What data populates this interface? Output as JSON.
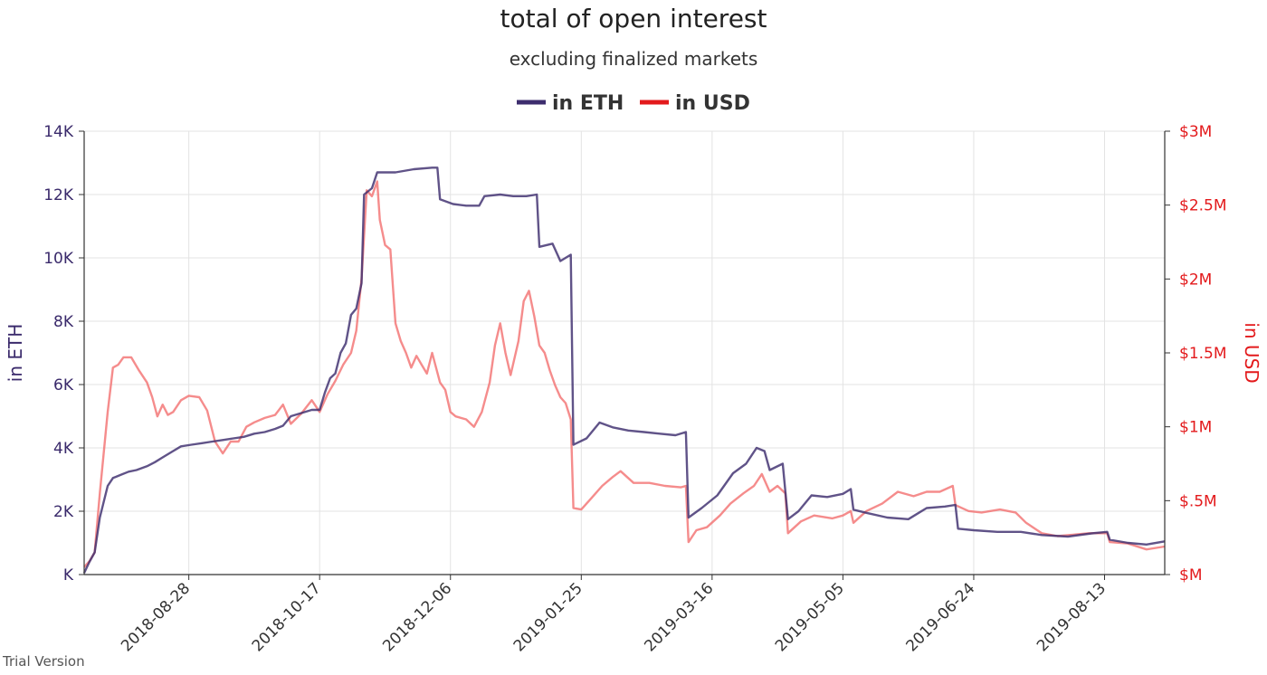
{
  "watermark": "Trial Version",
  "chart_data": {
    "type": "line",
    "title": "total of open interest",
    "subtitle": "excluding finalized markets",
    "legend_position": "top-center",
    "grid": true,
    "colors": {
      "eth": "#3d2d6e",
      "usd": "#f26b6b",
      "eth_tick": "#3a2a6b",
      "usd_tick": "#e31a1c"
    },
    "y_left": {
      "label": "in ETH",
      "range": [
        0,
        14000
      ],
      "ticks": [
        0,
        2000,
        4000,
        6000,
        8000,
        10000,
        12000,
        14000
      ],
      "tick_labels": [
        "K",
        "2K",
        "4K",
        "6K",
        "8K",
        "10K",
        "12K",
        "14K"
      ]
    },
    "y_right": {
      "label": "in USD",
      "range": [
        0,
        3000000
      ],
      "ticks": [
        0,
        500000,
        1000000,
        1500000,
        2000000,
        2500000,
        3000000
      ],
      "tick_labels": [
        "$M",
        "$.5M",
        "$1M",
        "$1.5M",
        "$2M",
        "$2.5M",
        "$3M"
      ]
    },
    "x_range": [
      "2018-07-19",
      "2019-09-05"
    ],
    "x_ticks": [
      "2018-08-28",
      "2018-10-17",
      "2018-12-06",
      "2019-01-25",
      "2019-03-16",
      "2019-05-05",
      "2019-06-24",
      "2019-08-13"
    ],
    "series": [
      {
        "name": "in ETH",
        "axis": "left",
        "points": [
          [
            "2018-07-19",
            50
          ],
          [
            "2018-07-21",
            400
          ],
          [
            "2018-07-23",
            700
          ],
          [
            "2018-07-25",
            1800
          ],
          [
            "2018-07-28",
            2800
          ],
          [
            "2018-07-30",
            3050
          ],
          [
            "2018-08-02",
            3150
          ],
          [
            "2018-08-05",
            3250
          ],
          [
            "2018-08-08",
            3300
          ],
          [
            "2018-08-12",
            3420
          ],
          [
            "2018-08-15",
            3550
          ],
          [
            "2018-08-18",
            3700
          ],
          [
            "2018-08-22",
            3900
          ],
          [
            "2018-08-25",
            4050
          ],
          [
            "2018-08-29",
            4100
          ],
          [
            "2018-09-02",
            4150
          ],
          [
            "2018-09-06",
            4200
          ],
          [
            "2018-09-10",
            4250
          ],
          [
            "2018-09-14",
            4300
          ],
          [
            "2018-09-18",
            4350
          ],
          [
            "2018-09-22",
            4450
          ],
          [
            "2018-09-26",
            4500
          ],
          [
            "2018-09-30",
            4600
          ],
          [
            "2018-10-03",
            4700
          ],
          [
            "2018-10-06",
            5000
          ],
          [
            "2018-10-10",
            5100
          ],
          [
            "2018-10-14",
            5200
          ],
          [
            "2018-10-17",
            5200
          ],
          [
            "2018-10-19",
            5750
          ],
          [
            "2018-10-21",
            6200
          ],
          [
            "2018-10-23",
            6350
          ],
          [
            "2018-10-25",
            7000
          ],
          [
            "2018-10-27",
            7300
          ],
          [
            "2018-10-29",
            8200
          ],
          [
            "2018-10-31",
            8400
          ],
          [
            "2018-11-02",
            9200
          ],
          [
            "2018-11-03",
            12000
          ],
          [
            "2018-11-06",
            12200
          ],
          [
            "2018-11-08",
            12700
          ],
          [
            "2018-11-15",
            12700
          ],
          [
            "2018-11-22",
            12800
          ],
          [
            "2018-11-29",
            12850
          ],
          [
            "2018-12-01",
            12850
          ],
          [
            "2018-12-02",
            11850
          ],
          [
            "2018-12-07",
            11700
          ],
          [
            "2018-12-12",
            11650
          ],
          [
            "2018-12-17",
            11650
          ],
          [
            "2018-12-19",
            11950
          ],
          [
            "2018-12-25",
            12000
          ],
          [
            "2018-12-30",
            11950
          ],
          [
            "2019-01-04",
            11950
          ],
          [
            "2019-01-08",
            12000
          ],
          [
            "2019-01-09",
            10350
          ],
          [
            "2019-01-14",
            10450
          ],
          [
            "2019-01-17",
            9900
          ],
          [
            "2019-01-21",
            10100
          ],
          [
            "2019-01-22",
            4100
          ],
          [
            "2019-01-27",
            4300
          ],
          [
            "2019-02-01",
            4800
          ],
          [
            "2019-02-06",
            4650
          ],
          [
            "2019-02-12",
            4550
          ],
          [
            "2019-02-18",
            4500
          ],
          [
            "2019-02-24",
            4450
          ],
          [
            "2019-03-02",
            4400
          ],
          [
            "2019-03-06",
            4500
          ],
          [
            "2019-03-07",
            1800
          ],
          [
            "2019-03-12",
            2100
          ],
          [
            "2019-03-18",
            2500
          ],
          [
            "2019-03-24",
            3200
          ],
          [
            "2019-03-29",
            3500
          ],
          [
            "2019-04-02",
            4000
          ],
          [
            "2019-04-05",
            3900
          ],
          [
            "2019-04-07",
            3300
          ],
          [
            "2019-04-12",
            3500
          ],
          [
            "2019-04-14",
            1750
          ],
          [
            "2019-04-18",
            2000
          ],
          [
            "2019-04-23",
            2500
          ],
          [
            "2019-04-29",
            2450
          ],
          [
            "2019-05-05",
            2550
          ],
          [
            "2019-05-08",
            2700
          ],
          [
            "2019-05-09",
            2050
          ],
          [
            "2019-05-14",
            1950
          ],
          [
            "2019-05-22",
            1800
          ],
          [
            "2019-05-30",
            1750
          ],
          [
            "2019-06-06",
            2100
          ],
          [
            "2019-06-13",
            2150
          ],
          [
            "2019-06-17",
            2200
          ],
          [
            "2019-06-18",
            1450
          ],
          [
            "2019-06-24",
            1400
          ],
          [
            "2019-07-03",
            1350
          ],
          [
            "2019-07-12",
            1350
          ],
          [
            "2019-07-20",
            1250
          ],
          [
            "2019-07-30",
            1200
          ],
          [
            "2019-08-08",
            1300
          ],
          [
            "2019-08-14",
            1350
          ],
          [
            "2019-08-15",
            1100
          ],
          [
            "2019-08-22",
            1000
          ],
          [
            "2019-08-29",
            950
          ],
          [
            "2019-09-05",
            1050
          ]
        ]
      },
      {
        "name": "in USD",
        "axis": "right",
        "points": [
          [
            "2018-07-19",
            50000
          ],
          [
            "2018-07-21",
            90000
          ],
          [
            "2018-07-23",
            150000
          ],
          [
            "2018-07-25",
            550000
          ],
          [
            "2018-07-28",
            1100000
          ],
          [
            "2018-07-30",
            1400000
          ],
          [
            "2018-08-01",
            1420000
          ],
          [
            "2018-08-03",
            1470000
          ],
          [
            "2018-08-06",
            1470000
          ],
          [
            "2018-08-09",
            1380000
          ],
          [
            "2018-08-12",
            1300000
          ],
          [
            "2018-08-14",
            1200000
          ],
          [
            "2018-08-16",
            1070000
          ],
          [
            "2018-08-18",
            1150000
          ],
          [
            "2018-08-20",
            1080000
          ],
          [
            "2018-08-22",
            1100000
          ],
          [
            "2018-08-25",
            1180000
          ],
          [
            "2018-08-28",
            1210000
          ],
          [
            "2018-09-01",
            1200000
          ],
          [
            "2018-09-04",
            1110000
          ],
          [
            "2018-09-07",
            900000
          ],
          [
            "2018-09-10",
            820000
          ],
          [
            "2018-09-13",
            900000
          ],
          [
            "2018-09-16",
            900000
          ],
          [
            "2018-09-19",
            1000000
          ],
          [
            "2018-09-22",
            1030000
          ],
          [
            "2018-09-26",
            1060000
          ],
          [
            "2018-09-30",
            1080000
          ],
          [
            "2018-10-03",
            1150000
          ],
          [
            "2018-10-06",
            1020000
          ],
          [
            "2018-10-10",
            1090000
          ],
          [
            "2018-10-14",
            1180000
          ],
          [
            "2018-10-17",
            1100000
          ],
          [
            "2018-10-20",
            1220000
          ],
          [
            "2018-10-23",
            1310000
          ],
          [
            "2018-10-26",
            1420000
          ],
          [
            "2018-10-29",
            1500000
          ],
          [
            "2018-10-31",
            1650000
          ],
          [
            "2018-11-02",
            2000000
          ],
          [
            "2018-11-04",
            2600000
          ],
          [
            "2018-11-06",
            2560000
          ],
          [
            "2018-11-08",
            2660000
          ],
          [
            "2018-11-09",
            2400000
          ],
          [
            "2018-11-11",
            2230000
          ],
          [
            "2018-11-13",
            2200000
          ],
          [
            "2018-11-15",
            1700000
          ],
          [
            "2018-11-17",
            1580000
          ],
          [
            "2018-11-19",
            1500000
          ],
          [
            "2018-11-21",
            1400000
          ],
          [
            "2018-11-23",
            1480000
          ],
          [
            "2018-11-25",
            1420000
          ],
          [
            "2018-11-27",
            1360000
          ],
          [
            "2018-11-29",
            1500000
          ],
          [
            "2018-12-02",
            1300000
          ],
          [
            "2018-12-04",
            1250000
          ],
          [
            "2018-12-06",
            1100000
          ],
          [
            "2018-12-08",
            1070000
          ],
          [
            "2018-12-12",
            1050000
          ],
          [
            "2018-12-15",
            1000000
          ],
          [
            "2018-12-18",
            1100000
          ],
          [
            "2018-12-21",
            1300000
          ],
          [
            "2018-12-23",
            1550000
          ],
          [
            "2018-12-25",
            1700000
          ],
          [
            "2018-12-27",
            1500000
          ],
          [
            "2018-12-29",
            1350000
          ],
          [
            "2019-01-01",
            1580000
          ],
          [
            "2019-01-03",
            1850000
          ],
          [
            "2019-01-05",
            1920000
          ],
          [
            "2019-01-07",
            1750000
          ],
          [
            "2019-01-09",
            1550000
          ],
          [
            "2019-01-11",
            1500000
          ],
          [
            "2019-01-13",
            1380000
          ],
          [
            "2019-01-15",
            1280000
          ],
          [
            "2019-01-17",
            1200000
          ],
          [
            "2019-01-19",
            1160000
          ],
          [
            "2019-01-21",
            1050000
          ],
          [
            "2019-01-22",
            450000
          ],
          [
            "2019-01-25",
            440000
          ],
          [
            "2019-01-29",
            520000
          ],
          [
            "2019-02-02",
            600000
          ],
          [
            "2019-02-06",
            660000
          ],
          [
            "2019-02-09",
            700000
          ],
          [
            "2019-02-14",
            620000
          ],
          [
            "2019-02-20",
            620000
          ],
          [
            "2019-02-26",
            600000
          ],
          [
            "2019-03-04",
            590000
          ],
          [
            "2019-03-06",
            600000
          ],
          [
            "2019-03-07",
            220000
          ],
          [
            "2019-03-10",
            300000
          ],
          [
            "2019-03-14",
            320000
          ],
          [
            "2019-03-19",
            400000
          ],
          [
            "2019-03-23",
            480000
          ],
          [
            "2019-03-28",
            550000
          ],
          [
            "2019-04-01",
            600000
          ],
          [
            "2019-04-04",
            680000
          ],
          [
            "2019-04-07",
            560000
          ],
          [
            "2019-04-10",
            600000
          ],
          [
            "2019-04-13",
            550000
          ],
          [
            "2019-04-14",
            280000
          ],
          [
            "2019-04-19",
            360000
          ],
          [
            "2019-04-24",
            400000
          ],
          [
            "2019-05-01",
            380000
          ],
          [
            "2019-05-05",
            400000
          ],
          [
            "2019-05-08",
            430000
          ],
          [
            "2019-05-09",
            350000
          ],
          [
            "2019-05-14",
            430000
          ],
          [
            "2019-05-20",
            480000
          ],
          [
            "2019-05-26",
            560000
          ],
          [
            "2019-06-01",
            530000
          ],
          [
            "2019-06-06",
            560000
          ],
          [
            "2019-06-11",
            560000
          ],
          [
            "2019-06-16",
            600000
          ],
          [
            "2019-06-17",
            470000
          ],
          [
            "2019-06-22",
            430000
          ],
          [
            "2019-06-27",
            420000
          ],
          [
            "2019-07-04",
            440000
          ],
          [
            "2019-07-10",
            420000
          ],
          [
            "2019-07-14",
            350000
          ],
          [
            "2019-07-20",
            280000
          ],
          [
            "2019-07-26",
            260000
          ],
          [
            "2019-08-01",
            270000
          ],
          [
            "2019-08-07",
            280000
          ],
          [
            "2019-08-14",
            280000
          ],
          [
            "2019-08-15",
            220000
          ],
          [
            "2019-08-22",
            210000
          ],
          [
            "2019-08-29",
            170000
          ],
          [
            "2019-09-05",
            190000
          ]
        ]
      }
    ]
  }
}
